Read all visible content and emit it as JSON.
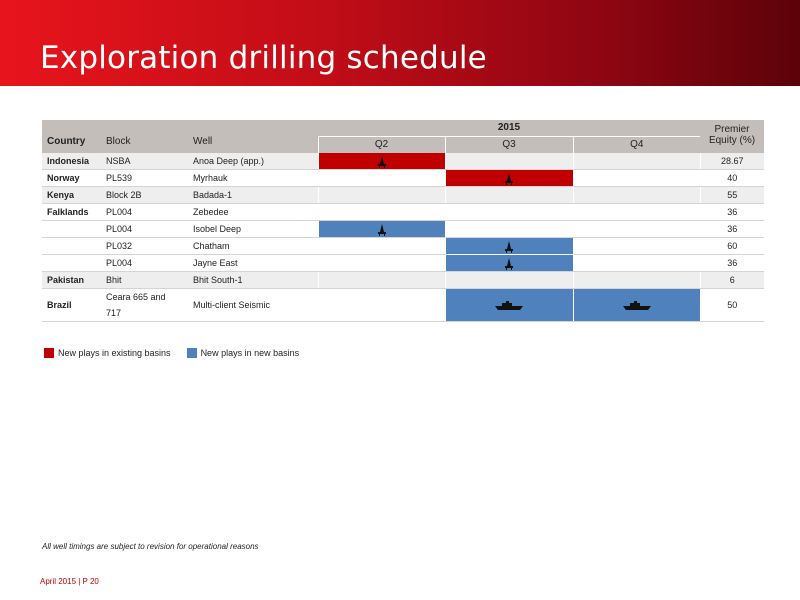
{
  "header": {
    "title": "Exploration drilling schedule"
  },
  "table": {
    "columns": {
      "country": "Country",
      "block": "Block",
      "well": "Well",
      "year": "2015",
      "q2": "Q2",
      "q3": "Q3",
      "q4": "Q4",
      "equity": "Premier Equity (%)"
    },
    "rows": [
      {
        "country": "Indonesia",
        "block": "NSBA",
        "well": "Anoa Deep (app.)",
        "q2": "rig",
        "q3": "",
        "q4": "",
        "q2_color": "red",
        "equity": "28.67"
      },
      {
        "country": "Norway",
        "block": "PL539",
        "well": "Myrhauk",
        "q3": "rig",
        "q3_color": "red",
        "equity": "40"
      },
      {
        "country": "Kenya",
        "block": "Block 2B",
        "well": "Badada-1",
        "equity": "55"
      },
      {
        "country": "Falklands",
        "block": "PL004",
        "well": "Zebedee",
        "equity": "36"
      },
      {
        "country": "",
        "block": "PL004",
        "well": "Isobel Deep",
        "q2": "rig",
        "q2_color": "blue",
        "equity": "36"
      },
      {
        "country": "",
        "block": "PL032",
        "well": "Chatham",
        "q3": "rig",
        "q3_color": "blue",
        "equity": "60"
      },
      {
        "country": "",
        "block": "PL004",
        "well": "Jayne East",
        "q3": "rig",
        "q3_color": "blue",
        "equity": "36"
      },
      {
        "country": "Pakistan",
        "block": "Bhit",
        "well": "Bhit South-1",
        "equity": "6"
      },
      {
        "country": "Brazil",
        "block": "Ceara 665 and 717",
        "well": "Multi-client Seismic",
        "q3": "ship",
        "q3_color": "blue",
        "q4": "ship",
        "q4_color": "blue",
        "equity": "50"
      }
    ]
  },
  "legend": {
    "items": [
      {
        "label": "New plays in existing basins",
        "color": "#c00000"
      },
      {
        "label": "New plays in new basins",
        "color": "#4f81bd"
      }
    ]
  },
  "footnote": "All well timings are subject to revision for operational reasons",
  "footer": {
    "page": "April 2015 | P 20"
  },
  "icons": {
    "rig": "drilling-rig-icon",
    "ship": "seismic-vessel-icon"
  },
  "colors": {
    "accent": "#c00000",
    "blue": "#4f81bd",
    "header_gray": "#c4beba"
  }
}
